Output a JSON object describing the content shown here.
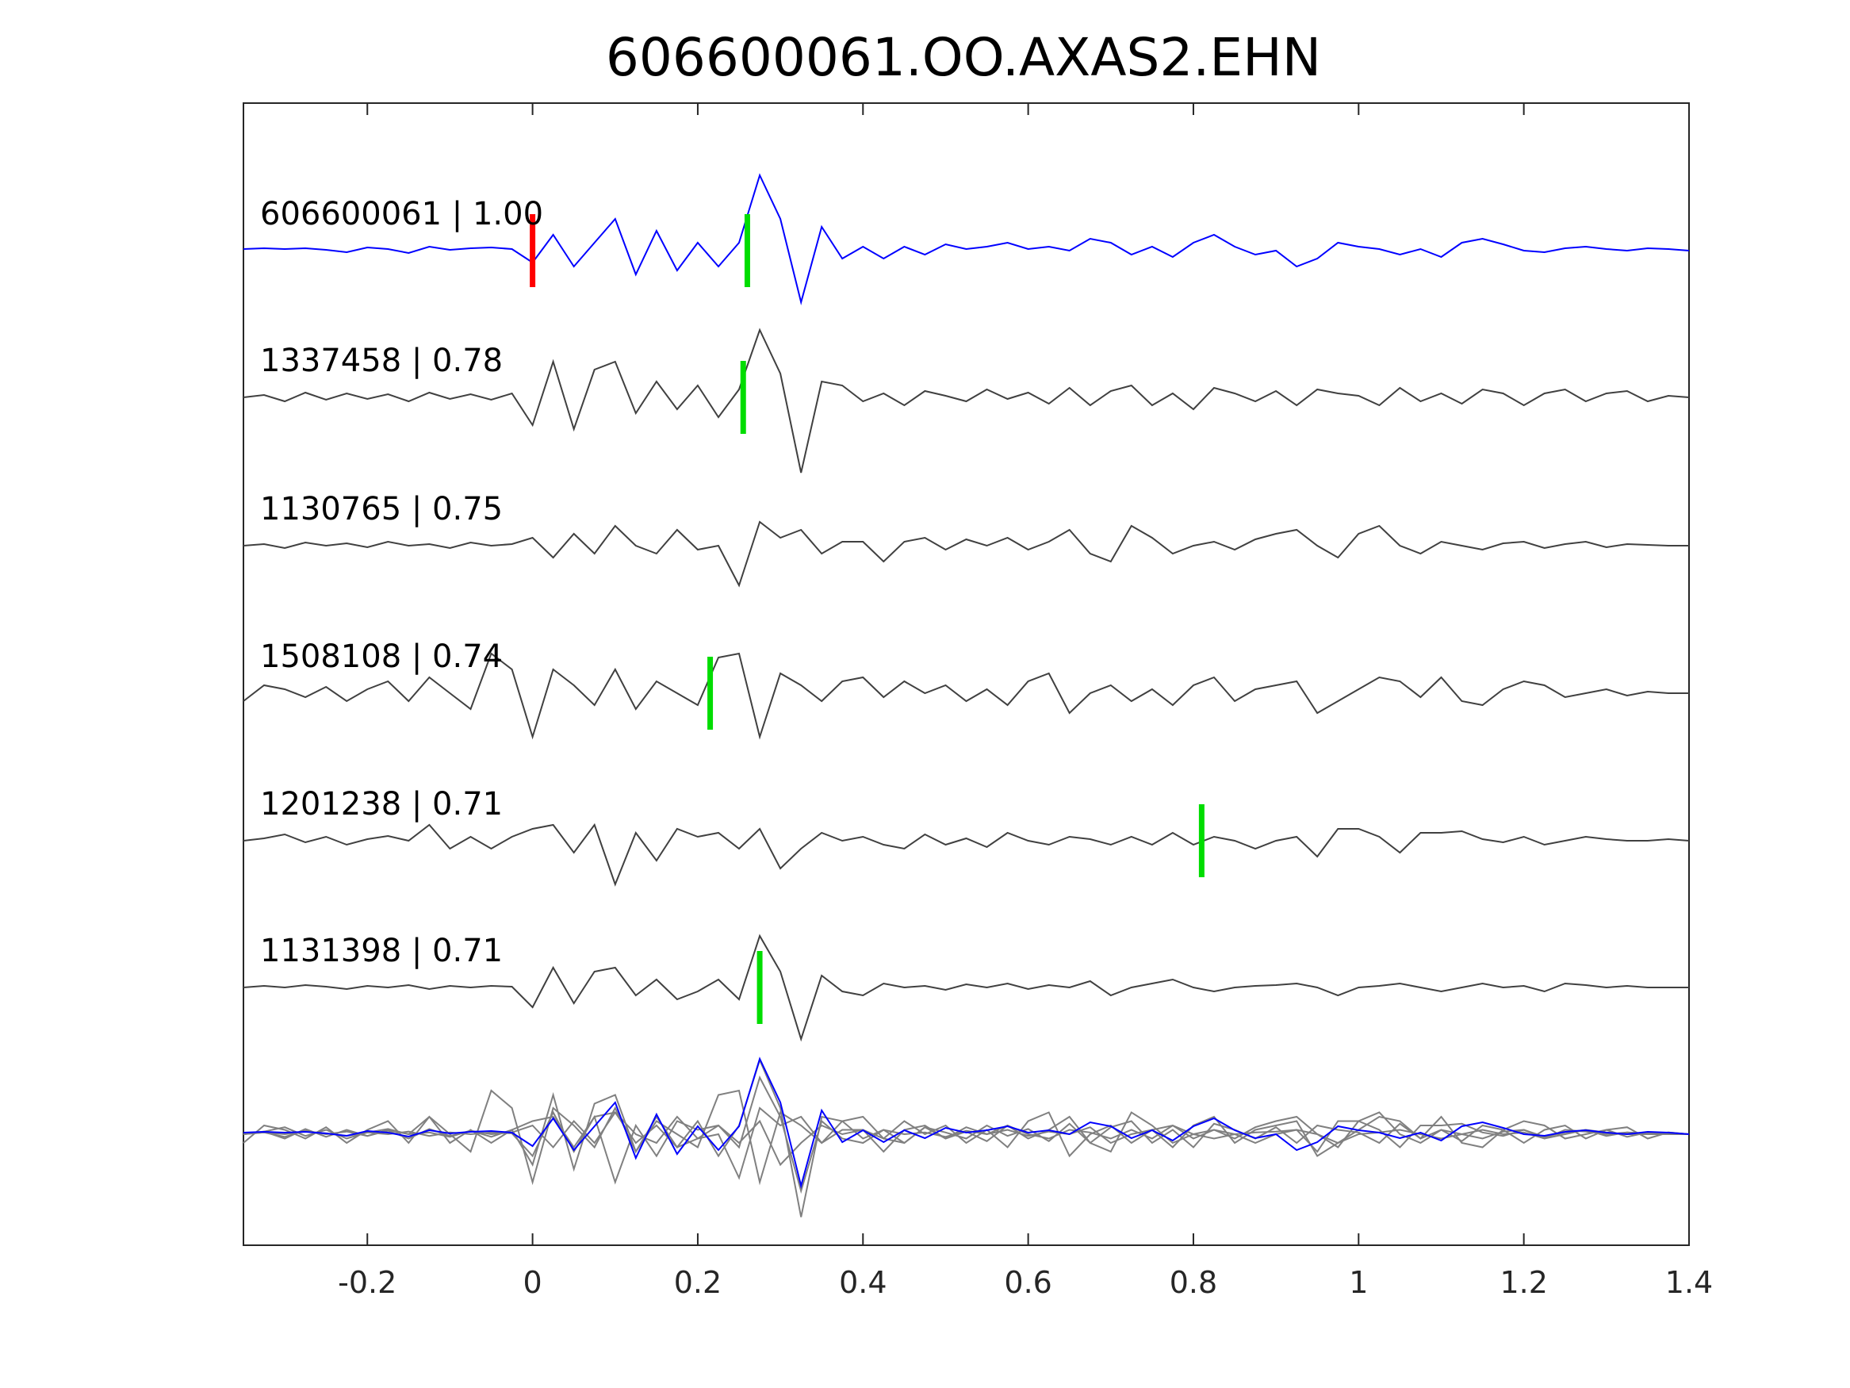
{
  "chart_data": {
    "type": "line",
    "title": "606600061.OO.AXAS2.EHN",
    "xlabel": "",
    "ylabel": "",
    "xlim": [
      -0.35,
      1.4
    ],
    "xticks": [
      -0.2,
      0,
      0.2,
      0.4,
      0.6,
      0.8,
      1,
      1.2,
      1.4
    ],
    "xtick_labels": [
      "-0.2",
      "0",
      "0.2",
      "0.4",
      "0.6",
      "0.8",
      "1",
      "1.2",
      "1.4"
    ],
    "grid": false,
    "colors": {
      "reference": "#0000ff",
      "trace": "#404040",
      "overlay": "#808080",
      "p_pick": "#ff0000",
      "s_pick": "#00dd00"
    },
    "sample_start": -0.35,
    "sample_interval": 0.025,
    "traces": [
      {
        "label": "606600061 | 1.00",
        "id": "606600061",
        "cc": 1.0,
        "reference": true,
        "red_pick": 0.0,
        "green_pick": 0.26,
        "samples": [
          0.02,
          0.03,
          0.02,
          0.03,
          0.01,
          -0.02,
          0.04,
          0.02,
          -0.03,
          0.05,
          0.01,
          0.03,
          0.04,
          0.02,
          -0.15,
          0.2,
          -0.2,
          0.1,
          0.4,
          -0.3,
          0.25,
          -0.25,
          0.1,
          -0.2,
          0.1,
          0.95,
          0.4,
          -0.65,
          0.3,
          -0.1,
          0.05,
          -0.1,
          0.05,
          -0.05,
          0.08,
          0.02,
          0.05,
          0.1,
          0.02,
          0.05,
          0.0,
          0.15,
          0.1,
          -0.05,
          0.05,
          -0.08,
          0.1,
          0.2,
          0.05,
          -0.05,
          0.0,
          -0.2,
          -0.1,
          0.1,
          0.05,
          0.02,
          -0.05,
          0.02,
          -0.08,
          0.1,
          0.15,
          0.08,
          0.0,
          -0.02,
          0.03,
          0.05,
          0.02,
          0.0,
          0.03,
          0.02,
          0.0
        ]
      },
      {
        "label": "1337458 | 0.78",
        "id": "1337458",
        "cc": 0.78,
        "reference": false,
        "green_pick": 0.255,
        "samples": [
          0.0,
          0.03,
          -0.05,
          0.06,
          -0.03,
          0.05,
          -0.02,
          0.04,
          -0.05,
          0.06,
          -0.02,
          0.04,
          -0.03,
          0.05,
          -0.35,
          0.45,
          -0.4,
          0.35,
          0.45,
          -0.2,
          0.2,
          -0.15,
          0.15,
          -0.25,
          0.1,
          0.85,
          0.3,
          -0.95,
          0.2,
          0.15,
          -0.05,
          0.05,
          -0.1,
          0.08,
          0.02,
          -0.05,
          0.1,
          -0.02,
          0.06,
          -0.08,
          0.12,
          -0.1,
          0.08,
          0.15,
          -0.1,
          0.05,
          -0.15,
          0.12,
          0.05,
          -0.05,
          0.08,
          -0.1,
          0.1,
          0.05,
          0.02,
          -0.1,
          0.12,
          -0.05,
          0.05,
          -0.08,
          0.1,
          0.05,
          -0.1,
          0.05,
          0.1,
          -0.05,
          0.05,
          0.08,
          -0.05,
          0.02,
          0.0
        ]
      },
      {
        "label": "1130765 | 0.75",
        "id": "1130765",
        "cc": 0.75,
        "reference": false,
        "samples": [
          0.0,
          0.02,
          -0.03,
          0.04,
          0.0,
          0.03,
          -0.02,
          0.05,
          0.0,
          0.02,
          -0.03,
          0.04,
          0.0,
          0.02,
          0.1,
          -0.15,
          0.15,
          -0.1,
          0.25,
          0.0,
          -0.1,
          0.2,
          -0.05,
          0.0,
          -0.5,
          0.3,
          0.1,
          0.2,
          -0.1,
          0.05,
          0.05,
          -0.2,
          0.05,
          0.1,
          -0.05,
          0.08,
          0.0,
          0.1,
          -0.05,
          0.05,
          0.2,
          -0.1,
          -0.2,
          0.25,
          0.1,
          -0.1,
          0.0,
          0.05,
          -0.05,
          0.08,
          0.15,
          0.2,
          0.0,
          -0.15,
          0.15,
          0.25,
          0.0,
          -0.1,
          0.05,
          0.0,
          -0.05,
          0.03,
          0.05,
          -0.03,
          0.02,
          0.05,
          -0.02,
          0.02,
          0.01,
          0.0,
          0.0
        ]
      },
      {
        "label": "1508108 | 0.74",
        "id": "1508108",
        "cc": 0.74,
        "reference": false,
        "green_pick": 0.215,
        "samples": [
          -0.1,
          0.1,
          0.05,
          -0.05,
          0.08,
          -0.1,
          0.05,
          0.15,
          -0.1,
          0.2,
          0.0,
          -0.2,
          0.5,
          0.3,
          -0.55,
          0.3,
          0.1,
          -0.15,
          0.3,
          -0.2,
          0.15,
          0.0,
          -0.15,
          0.45,
          0.5,
          -0.55,
          0.25,
          0.1,
          -0.1,
          0.15,
          0.2,
          -0.05,
          0.15,
          0.0,
          0.1,
          -0.1,
          0.05,
          -0.15,
          0.15,
          0.25,
          -0.25,
          0.0,
          0.1,
          -0.1,
          0.05,
          -0.15,
          0.1,
          0.2,
          -0.1,
          0.05,
          0.1,
          0.15,
          -0.25,
          -0.1,
          0.05,
          0.2,
          0.15,
          -0.05,
          0.2,
          -0.1,
          -0.15,
          0.05,
          0.15,
          0.1,
          -0.05,
          0.0,
          0.05,
          -0.03,
          0.02,
          0.0,
          0.0
        ]
      },
      {
        "label": "1201238 | 0.71",
        "id": "1201238",
        "cc": 0.71,
        "reference": false,
        "green_pick": 0.81,
        "samples": [
          0.0,
          0.03,
          0.08,
          -0.02,
          0.05,
          -0.05,
          0.02,
          0.06,
          0.0,
          0.2,
          -0.1,
          0.05,
          -0.1,
          0.05,
          0.15,
          0.2,
          -0.15,
          0.2,
          -0.55,
          0.1,
          -0.25,
          0.15,
          0.05,
          0.1,
          -0.1,
          0.15,
          -0.35,
          -0.1,
          0.1,
          0.0,
          0.05,
          -0.05,
          -0.1,
          0.08,
          -0.05,
          0.03,
          -0.08,
          0.1,
          0.0,
          -0.05,
          0.05,
          0.02,
          -0.05,
          0.05,
          -0.05,
          0.1,
          -0.05,
          0.05,
          0.0,
          -0.1,
          0.0,
          0.05,
          -0.2,
          0.15,
          0.15,
          0.05,
          -0.15,
          0.1,
          0.1,
          0.12,
          0.02,
          -0.02,
          0.05,
          -0.05,
          0.0,
          0.05,
          0.02,
          0.0,
          0.0,
          0.02,
          0.0
        ]
      },
      {
        "label": "1131398 | 0.71",
        "id": "1131398",
        "cc": 0.71,
        "reference": false,
        "green_pick": 0.275,
        "samples": [
          0.0,
          0.02,
          0.0,
          0.03,
          0.01,
          -0.02,
          0.02,
          0.0,
          0.03,
          -0.02,
          0.02,
          0.0,
          0.02,
          0.01,
          -0.25,
          0.25,
          -0.2,
          0.2,
          0.25,
          -0.1,
          0.1,
          -0.15,
          -0.05,
          0.1,
          -0.15,
          0.65,
          0.2,
          -0.65,
          0.15,
          -0.05,
          -0.1,
          0.05,
          0.0,
          0.02,
          -0.03,
          0.04,
          0.0,
          0.05,
          -0.02,
          0.03,
          0.0,
          0.08,
          -0.1,
          0.0,
          0.05,
          0.1,
          0.0,
          -0.05,
          0.0,
          0.02,
          0.03,
          0.05,
          0.0,
          -0.1,
          0.0,
          0.02,
          0.05,
          0.0,
          -0.05,
          0.0,
          0.05,
          0.0,
          0.02,
          -0.05,
          0.05,
          0.03,
          0.0,
          0.02,
          0.0,
          0.0,
          0.0
        ]
      }
    ]
  }
}
